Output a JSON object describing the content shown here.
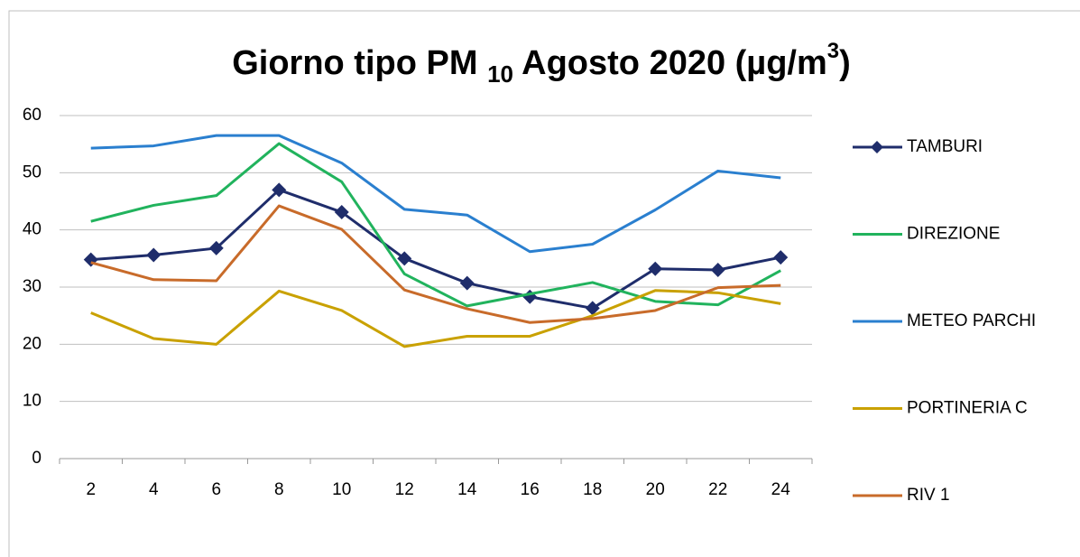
{
  "chart_data": {
    "type": "line",
    "title": {
      "main": "Giorno tipo PM",
      "sub": "10",
      "rest": "Agosto 2020 (µg/m",
      "sup": "3",
      "end": ")"
    },
    "categories": [
      "2",
      "4",
      "6",
      "8",
      "10",
      "12",
      "14",
      "16",
      "18",
      "20",
      "22",
      "24"
    ],
    "ylim": [
      0,
      60
    ],
    "yticks": [
      0,
      10,
      20,
      30,
      40,
      50,
      60
    ],
    "grid": true,
    "legend": "right",
    "series": [
      {
        "name": "TAMBURI",
        "color": "#1f2d6b",
        "marker": "diamond",
        "values": [
          34.8,
          35.6,
          36.8,
          47,
          43.1,
          35,
          30.7,
          28.3,
          26.3,
          33.2,
          33,
          35.2
        ]
      },
      {
        "name": "DIREZIONE",
        "color": "#21b35d",
        "values": [
          41.5,
          44.3,
          46,
          55.1,
          48.4,
          32.3,
          26.7,
          28.8,
          30.8,
          27.5,
          26.9,
          32.9
        ]
      },
      {
        "name": "METEO PARCHI",
        "color": "#2a7fcf",
        "values": [
          54.3,
          54.7,
          56.5,
          56.5,
          51.7,
          43.6,
          42.6,
          36.2,
          37.5,
          43.5,
          50.3,
          49.1
        ]
      },
      {
        "name": "PORTINERIA C",
        "color": "#c9a100",
        "values": [
          25.5,
          21,
          20,
          29.3,
          25.9,
          19.6,
          21.4,
          21.4,
          25,
          29.4,
          29,
          27.1
        ]
      },
      {
        "name": "RIV 1",
        "color": "#c86b2a",
        "values": [
          34.3,
          31.3,
          31.1,
          44.2,
          40.1,
          29.5,
          26.2,
          23.8,
          24.5,
          25.9,
          29.9,
          30.3
        ]
      }
    ]
  }
}
